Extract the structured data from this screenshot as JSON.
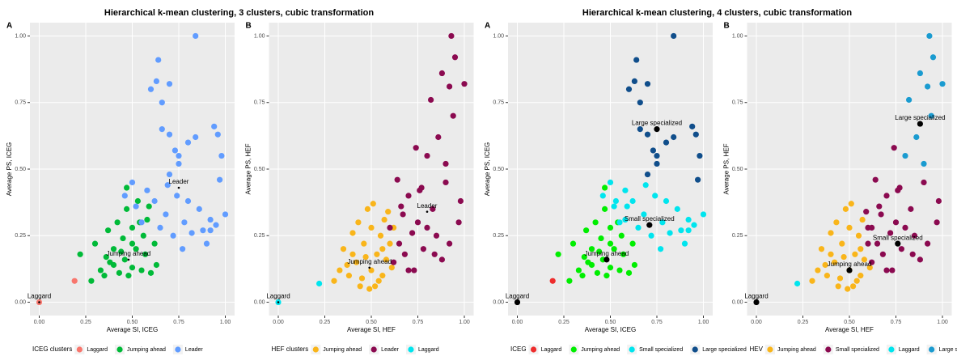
{
  "chart_data": [
    {
      "type": "scatter",
      "title": "Hierarchical k-mean clustering, 3 clusters, cubic transformation",
      "panel_label": "A",
      "xlabel": "Average SI, ICEG",
      "ylabel": "Average PS, ICEG",
      "legend_title": "ICEG clusters",
      "centroid_size": "small",
      "xlim": [
        -0.05,
        1.05
      ],
      "ylim": [
        -0.05,
        1.05
      ],
      "xticks": [
        {
          "value": 0,
          "label": "0.00"
        },
        {
          "value": 0.25,
          "label": "0.25"
        },
        {
          "value": 0.5,
          "label": "0.50"
        },
        {
          "value": 0.75,
          "label": "0.75"
        },
        {
          "value": 1,
          "label": "1.00"
        }
      ],
      "yticks": [
        {
          "value": 0,
          "label": "0.00"
        },
        {
          "value": 0.25,
          "label": "0.25"
        },
        {
          "value": 0.5,
          "label": "0.50"
        },
        {
          "value": 0.75,
          "label": "0.75"
        },
        {
          "value": 1,
          "label": "1.00"
        }
      ],
      "series": [
        {
          "name": "Laggard",
          "color": "#F8766D",
          "x": [
            0,
            0.19
          ],
          "values": [
            0,
            0.08
          ]
        },
        {
          "name": "Jumping ahead",
          "color": "#00BA38",
          "x": [
            0.22,
            0.28,
            0.3,
            0.33,
            0.35,
            0.37,
            0.38,
            0.4,
            0.42,
            0.43,
            0.45,
            0.46,
            0.47,
            0.48,
            0.5,
            0.5,
            0.52,
            0.53,
            0.55,
            0.56,
            0.57,
            0.58,
            0.6,
            0.62,
            0.63,
            0.4,
            0.44,
            0.36,
            0.5,
            0.54,
            0.47,
            0.59
          ],
          "values": [
            0.18,
            0.08,
            0.22,
            0.12,
            0.1,
            0.27,
            0.15,
            0.2,
            0.3,
            0.11,
            0.24,
            0.16,
            0.35,
            0.1,
            0.28,
            0.13,
            0.2,
            0.38,
            0.12,
            0.25,
            0.18,
            0.31,
            0.11,
            0.22,
            0.14,
            0.14,
            0.19,
            0.17,
            0.22,
            0.3,
            0.43,
            0.36
          ]
        },
        {
          "name": "Leader",
          "color": "#619CFF",
          "x": [
            0.46,
            0.5,
            0.52,
            0.55,
            0.58,
            0.6,
            0.62,
            0.64,
            0.65,
            0.66,
            0.68,
            0.7,
            0.7,
            0.72,
            0.74,
            0.75,
            0.77,
            0.78,
            0.8,
            0.82,
            0.84,
            0.86,
            0.88,
            0.9,
            0.92,
            0.94,
            0.95,
            0.97,
            0.98,
            1.0,
            0.63,
            0.66,
            0.7,
            0.73,
            0.84,
            0.69,
            0.75,
            0.8,
            0.92,
            0.96
          ],
          "values": [
            0.4,
            0.45,
            0.36,
            0.3,
            0.42,
            0.8,
            0.38,
            0.91,
            0.28,
            0.65,
            0.33,
            0.48,
            0.63,
            0.25,
            0.4,
            0.55,
            0.2,
            0.3,
            0.6,
            0.26,
            1.0,
            0.35,
            0.27,
            0.22,
            0.31,
            0.66,
            0.29,
            0.46,
            0.55,
            0.33,
            0.83,
            0.75,
            0.82,
            0.57,
            0.62,
            0.44,
            0.52,
            0.38,
            0.27,
            0.63
          ]
        }
      ],
      "centroids": [
        {
          "label": "Laggard",
          "x": 0,
          "y": 0
        },
        {
          "label": "Jumping ahead",
          "x": 0.48,
          "y": 0.16
        },
        {
          "label": "Leader",
          "x": 0.75,
          "y": 0.43
        }
      ]
    },
    {
      "type": "scatter",
      "panel_label": "B",
      "xlabel": "Average SI, HEF",
      "ylabel": "Average PS, HEF",
      "legend_title": "HEF clusters",
      "centroid_size": "small",
      "xlim": [
        -0.05,
        1.05
      ],
      "ylim": [
        -0.05,
        1.05
      ],
      "xticks": [
        {
          "value": 0,
          "label": "0.00"
        },
        {
          "value": 0.25,
          "label": "0.25"
        },
        {
          "value": 0.5,
          "label": "0.50"
        },
        {
          "value": 0.75,
          "label": "0.75"
        },
        {
          "value": 1,
          "label": "1.00"
        }
      ],
      "yticks": [
        {
          "value": 0,
          "label": "0.00"
        },
        {
          "value": 0.25,
          "label": "0.25"
        },
        {
          "value": 0.5,
          "label": "0.50"
        },
        {
          "value": 0.75,
          "label": "0.75"
        },
        {
          "value": 1,
          "label": "1.00"
        }
      ],
      "series": [
        {
          "name": "Jumping ahead",
          "color": "#F9B51A",
          "x": [
            0.3,
            0.33,
            0.35,
            0.38,
            0.4,
            0.42,
            0.43,
            0.45,
            0.46,
            0.48,
            0.5,
            0.5,
            0.52,
            0.53,
            0.55,
            0.56,
            0.57,
            0.58,
            0.6,
            0.61,
            0.62,
            0.44,
            0.47,
            0.51,
            0.54,
            0.59,
            0.4,
            0.37,
            0.49,
            0.56
          ],
          "values": [
            0.08,
            0.12,
            0.2,
            0.1,
            0.26,
            0.15,
            0.3,
            0.09,
            0.22,
            0.35,
            0.12,
            0.28,
            0.06,
            0.18,
            0.25,
            0.1,
            0.31,
            0.16,
            0.22,
            0.13,
            0.28,
            0.06,
            0.17,
            0.37,
            0.08,
            0.34,
            0.18,
            0.14,
            0.05,
            0.2
          ]
        },
        {
          "name": "Leader",
          "color": "#8B0A50",
          "x": [
            0.6,
            0.62,
            0.64,
            0.65,
            0.67,
            0.68,
            0.7,
            0.72,
            0.73,
            0.75,
            0.77,
            0.78,
            0.8,
            0.82,
            0.83,
            0.85,
            0.86,
            0.88,
            0.9,
            0.92,
            0.93,
            0.95,
            0.97,
            1.0,
            0.66,
            0.74,
            0.8,
            0.84,
            0.9,
            0.94,
            0.7,
            0.76,
            0.88,
            0.92,
            0.98
          ],
          "values": [
            0.28,
            0.15,
            0.46,
            0.22,
            0.33,
            0.18,
            0.4,
            0.26,
            0.12,
            0.3,
            0.43,
            0.2,
            0.55,
            0.76,
            0.35,
            0.25,
            0.62,
            0.16,
            0.45,
            0.81,
            1.0,
            0.92,
            0.3,
            0.82,
            0.36,
            0.58,
            0.28,
            0.18,
            0.52,
            0.7,
            0.12,
            0.42,
            0.86,
            0.22,
            0.38
          ]
        },
        {
          "name": "Laggard",
          "color": "#00E5EE",
          "x": [
            0,
            0.22
          ],
          "values": [
            0,
            0.07
          ]
        }
      ],
      "centroids": [
        {
          "label": "Laggard",
          "x": 0,
          "y": 0
        },
        {
          "label": "Jumping ahead",
          "x": 0.49,
          "y": 0.13
        },
        {
          "label": "Leader",
          "x": 0.8,
          "y": 0.34
        }
      ]
    },
    {
      "type": "scatter",
      "title": "Hierarchical k-mean clustering, 4 clusters, cubic transformation",
      "panel_label": "A",
      "xlabel": "Average SI, ICEG",
      "ylabel": "Average PS, ICEG",
      "legend_title": "ICEG",
      "centroid_size": "large",
      "xlim": [
        -0.05,
        1.05
      ],
      "ylim": [
        -0.05,
        1.05
      ],
      "xticks": [
        {
          "value": 0,
          "label": "0.00"
        },
        {
          "value": 0.25,
          "label": "0.25"
        },
        {
          "value": 0.5,
          "label": "0.50"
        },
        {
          "value": 0.75,
          "label": "0.75"
        },
        {
          "value": 1,
          "label": "1.00"
        }
      ],
      "yticks": [
        {
          "value": 0,
          "label": "0.00"
        },
        {
          "value": 0.25,
          "label": "0.25"
        },
        {
          "value": 0.5,
          "label": "0.50"
        },
        {
          "value": 0.75,
          "label": "0.75"
        },
        {
          "value": 1,
          "label": "1.00"
        }
      ],
      "series": [
        {
          "name": "Laggard",
          "color": "#EE2C2C",
          "x": [
            0.19
          ],
          "values": [
            0.08
          ]
        },
        {
          "name": "Jumping ahead",
          "color": "#00EE00",
          "x": [
            0.22,
            0.28,
            0.3,
            0.33,
            0.35,
            0.37,
            0.38,
            0.4,
            0.42,
            0.43,
            0.45,
            0.46,
            0.47,
            0.48,
            0.5,
            0.5,
            0.52,
            0.55,
            0.56,
            0.57,
            0.6,
            0.62,
            0.63,
            0.4,
            0.44,
            0.36,
            0.5,
            0.54,
            0.47
          ],
          "values": [
            0.18,
            0.08,
            0.22,
            0.12,
            0.1,
            0.27,
            0.15,
            0.2,
            0.3,
            0.11,
            0.24,
            0.16,
            0.35,
            0.1,
            0.28,
            0.13,
            0.2,
            0.12,
            0.25,
            0.18,
            0.11,
            0.22,
            0.14,
            0.14,
            0.19,
            0.17,
            0.22,
            0.3,
            0.43
          ]
        },
        {
          "name": "Small specialized",
          "color": "#00E5EE",
          "x": [
            0.46,
            0.5,
            0.52,
            0.55,
            0.58,
            0.62,
            0.65,
            0.68,
            0.72,
            0.74,
            0.77,
            0.78,
            0.82,
            0.86,
            0.88,
            0.9,
            0.92,
            0.95,
            1.0,
            0.69,
            0.8,
            0.92,
            0.53,
            0.58,
            0.59
          ],
          "values": [
            0.4,
            0.45,
            0.36,
            0.3,
            0.42,
            0.38,
            0.28,
            0.33,
            0.25,
            0.4,
            0.2,
            0.3,
            0.26,
            0.35,
            0.27,
            0.22,
            0.31,
            0.29,
            0.33,
            0.44,
            0.38,
            0.27,
            0.38,
            0.31,
            0.36
          ]
        },
        {
          "name": "Large specialized",
          "color": "#104E8B",
          "x": [
            0.6,
            0.64,
            0.66,
            0.7,
            0.7,
            0.75,
            0.8,
            0.84,
            0.94,
            0.97,
            0.98,
            0.63,
            0.66,
            0.7,
            0.73,
            0.84,
            0.75,
            0.96
          ],
          "values": [
            0.8,
            0.91,
            0.65,
            0.48,
            0.63,
            0.55,
            0.6,
            1.0,
            0.66,
            0.46,
            0.55,
            0.83,
            0.75,
            0.82,
            0.57,
            0.62,
            0.52,
            0.63
          ]
        }
      ],
      "centroids": [
        {
          "label": "Laggard",
          "x": 0,
          "y": 0
        },
        {
          "label": "Jumping ahead",
          "x": 0.48,
          "y": 0.16
        },
        {
          "label": "Small specialized",
          "x": 0.71,
          "y": 0.29
        },
        {
          "label": "Large specialized",
          "x": 0.75,
          "y": 0.65
        }
      ]
    },
    {
      "type": "scatter",
      "panel_label": "B",
      "xlabel": "Average SI, HEF",
      "ylabel": "Average PS, HEF",
      "legend_title": "HEV",
      "centroid_size": "large",
      "xlim": [
        -0.05,
        1.05
      ],
      "ylim": [
        -0.05,
        1.05
      ],
      "xticks": [
        {
          "value": 0,
          "label": "0.00"
        },
        {
          "value": 0.25,
          "label": "0.25"
        },
        {
          "value": 0.5,
          "label": "0.50"
        },
        {
          "value": 0.75,
          "label": "0.75"
        },
        {
          "value": 1,
          "label": "1.00"
        }
      ],
      "yticks": [
        {
          "value": 0,
          "label": "0.00"
        },
        {
          "value": 0.25,
          "label": "0.25"
        },
        {
          "value": 0.5,
          "label": "0.50"
        },
        {
          "value": 0.75,
          "label": "0.75"
        },
        {
          "value": 1,
          "label": "1.00"
        }
      ],
      "series": [
        {
          "name": "Jumping ahead",
          "color": "#F9B51A",
          "x": [
            0.3,
            0.33,
            0.35,
            0.38,
            0.4,
            0.42,
            0.43,
            0.45,
            0.46,
            0.48,
            0.5,
            0.5,
            0.52,
            0.53,
            0.55,
            0.56,
            0.57,
            0.58,
            0.61,
            0.44,
            0.47,
            0.51,
            0.54,
            0.4,
            0.37,
            0.49,
            0.56
          ],
          "values": [
            0.08,
            0.12,
            0.2,
            0.1,
            0.26,
            0.15,
            0.3,
            0.09,
            0.22,
            0.35,
            0.12,
            0.28,
            0.06,
            0.18,
            0.25,
            0.1,
            0.31,
            0.16,
            0.13,
            0.06,
            0.17,
            0.37,
            0.08,
            0.18,
            0.14,
            0.05,
            0.2
          ]
        },
        {
          "name": "Small specialized",
          "color": "#8B0A50",
          "x": [
            0.6,
            0.62,
            0.64,
            0.65,
            0.67,
            0.68,
            0.7,
            0.72,
            0.73,
            0.75,
            0.77,
            0.78,
            0.83,
            0.85,
            0.88,
            0.9,
            0.97,
            0.66,
            0.74,
            0.8,
            0.84,
            0.7,
            0.76,
            0.92,
            0.98,
            0.59,
            0.62,
            0.6
          ],
          "values": [
            0.28,
            0.15,
            0.46,
            0.22,
            0.33,
            0.18,
            0.4,
            0.26,
            0.12,
            0.3,
            0.43,
            0.2,
            0.35,
            0.25,
            0.16,
            0.45,
            0.3,
            0.36,
            0.58,
            0.28,
            0.18,
            0.12,
            0.42,
            0.22,
            0.38,
            0.34,
            0.28,
            0.22
          ]
        },
        {
          "name": "Laggard",
          "color": "#00E5EE",
          "x": [
            0.22
          ],
          "values": [
            0.07
          ]
        },
        {
          "name": "Large specialized",
          "color": "#1A9BD0",
          "x": [
            0.82,
            0.86,
            0.92,
            0.93,
            0.95,
            1.0,
            0.9,
            0.94,
            0.88,
            0.8
          ],
          "values": [
            0.76,
            0.62,
            0.81,
            1.0,
            0.92,
            0.82,
            0.52,
            0.7,
            0.86,
            0.55
          ]
        }
      ],
      "centroids": [
        {
          "label": "Laggard",
          "x": 0,
          "y": 0
        },
        {
          "label": "Jumping ahead",
          "x": 0.5,
          "y": 0.12
        },
        {
          "label": "Small specialized",
          "x": 0.76,
          "y": 0.22
        },
        {
          "label": "Large specialized",
          "x": 0.88,
          "y": 0.67
        }
      ]
    }
  ]
}
